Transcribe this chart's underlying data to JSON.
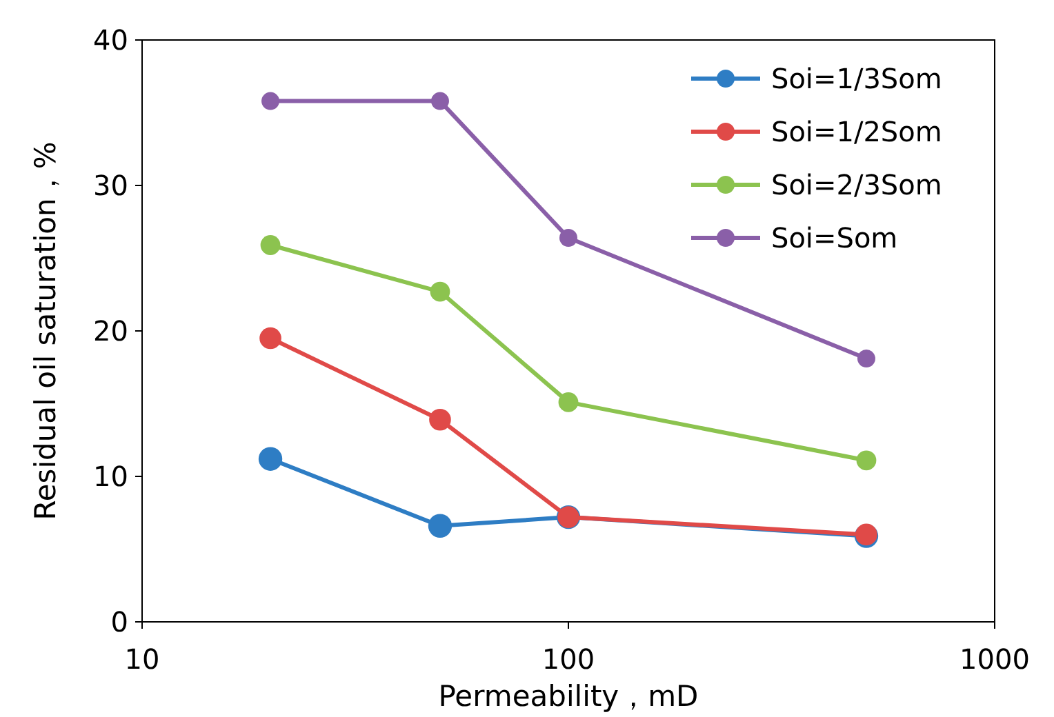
{
  "chart_data": {
    "type": "line",
    "x": [
      20,
      50,
      100,
      500
    ],
    "xlabel": "Permeability，mD",
    "ylabel": "Residual oil saturation，%",
    "log": "x",
    "xlim": [
      10,
      1000
    ],
    "xticks": [
      10,
      100,
      1000
    ],
    "ylim": [
      0,
      40
    ],
    "yticks": [
      0,
      10,
      20,
      30,
      40
    ],
    "marker": "circle",
    "line_style": "solid",
    "legend": "top right",
    "grid": false,
    "series": [
      {
        "name": "Soi=1/3Som",
        "color": "#2e7dc4",
        "values": [
          11.2,
          6.6,
          7.2,
          5.9
        ]
      },
      {
        "name": "Soi=1/2Som",
        "color": "#e04a48",
        "values": [
          19.5,
          13.9,
          7.2,
          6.0
        ]
      },
      {
        "name": "Soi=2/3Som",
        "color": "#8cc34f",
        "values": [
          25.9,
          22.7,
          15.1,
          11.1
        ]
      },
      {
        "name": "Soi=Som",
        "color": "#8a5fa8",
        "values": [
          35.8,
          35.8,
          26.4,
          18.1
        ]
      }
    ]
  }
}
